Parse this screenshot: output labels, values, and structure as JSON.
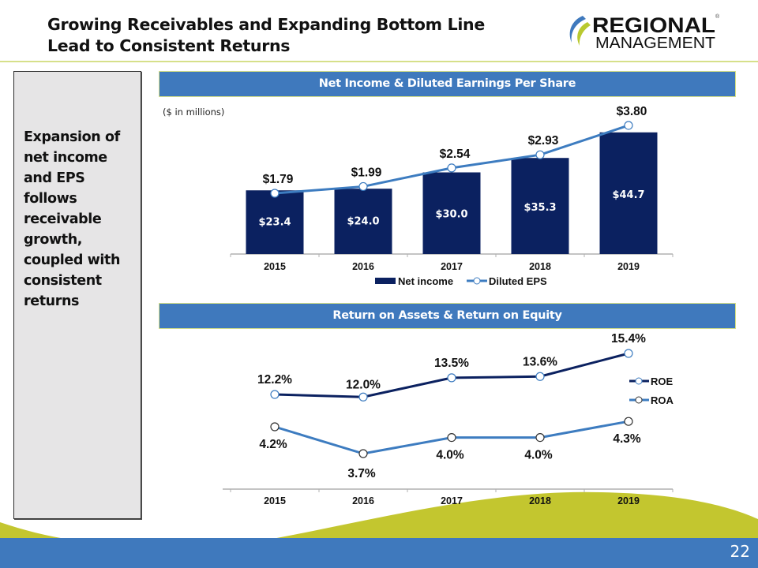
{
  "slide": {
    "title_lines": [
      "Growing Receivables and Expanding Bottom Line",
      "Lead to Consistent Returns"
    ],
    "logo": {
      "line1": "REGIONAL",
      "line2": "MANAGEMENT",
      "registered": "®"
    },
    "sidebar_text_lines": [
      "Expansion of",
      "net income",
      "and EPS",
      "follows",
      "receivable",
      "growth,",
      "coupled with",
      "consistent",
      "returns"
    ],
    "page_number": "22",
    "colors": {
      "accent_blue": "#3f79bd",
      "navy": "#0b2160",
      "line_blue": "#3d7cc0",
      "green": "#c3c62f"
    }
  },
  "chart_data": [
    {
      "type": "bar",
      "title": "Net Income & Diluted Earnings Per Share",
      "subtitle": "($ in millions)",
      "categories": [
        "2015",
        "2016",
        "2017",
        "2018",
        "2019"
      ],
      "series": [
        {
          "name": "Net income",
          "kind": "bar",
          "values": [
            23.4,
            24.0,
            30.0,
            35.3,
            44.7
          ],
          "labels": [
            "$23.4",
            "$24.0",
            "$30.0",
            "$35.3",
            "$44.7"
          ],
          "color": "#0b2160"
        },
        {
          "name": "Diluted EPS",
          "kind": "line",
          "values": [
            1.79,
            1.99,
            2.54,
            2.93,
            3.8
          ],
          "labels": [
            "$1.79",
            "$1.99",
            "$2.54",
            "$2.93",
            "$3.80"
          ],
          "color": "#3d7cc0"
        }
      ],
      "legend": [
        "Net income",
        "Diluted EPS"
      ],
      "legend_position": "bottom",
      "grid": false,
      "xlabel": "",
      "ylabel": ""
    },
    {
      "type": "line",
      "title": "Return on Assets & Return on Equity",
      "categories": [
        "2015",
        "2016",
        "2017",
        "2018",
        "2019"
      ],
      "series": [
        {
          "name": "ROE",
          "values": [
            12.2,
            12.0,
            13.5,
            13.6,
            15.4
          ],
          "labels": [
            "12.2%",
            "12.0%",
            "13.5%",
            "13.6%",
            "15.4%"
          ],
          "color": "#0b2160"
        },
        {
          "name": "ROA",
          "values": [
            4.2,
            3.7,
            4.0,
            4.0,
            4.3
          ],
          "labels": [
            "4.2%",
            "3.7%",
            "4.0%",
            "4.0%",
            "4.3%"
          ],
          "color": "#3d7cc0"
        }
      ],
      "legend": [
        "ROE",
        "ROA"
      ],
      "legend_position": "right",
      "grid": false,
      "xlabel": "",
      "ylabel": ""
    }
  ]
}
